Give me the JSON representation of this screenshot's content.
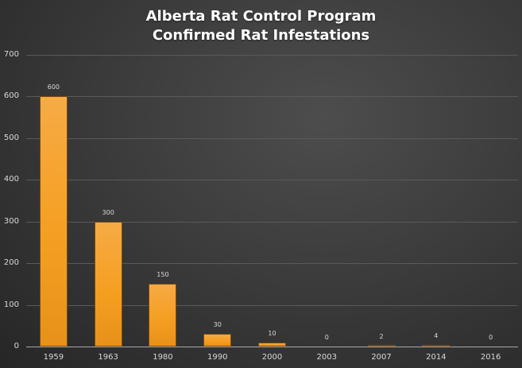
{
  "chart_data": {
    "type": "bar",
    "title": "Alberta Rat Control Program\nConfirmed Rat Infestations",
    "title_lines": [
      "Alberta Rat Control Program",
      "Confirmed Rat Infestations"
    ],
    "categories": [
      "1959",
      "1963",
      "1980",
      "1990",
      "2000",
      "2003",
      "2007",
      "2014",
      "2016"
    ],
    "values": [
      600,
      300,
      150,
      30,
      10,
      0,
      2,
      4,
      0
    ],
    "data_labels": [
      "600",
      "300",
      "150",
      "30",
      "10",
      "0",
      "2",
      "4",
      "0"
    ],
    "xlabel": "",
    "ylabel": "",
    "ylim": [
      0,
      700
    ],
    "yticks": [
      "0",
      "100",
      "200",
      "300",
      "400",
      "500",
      "600",
      "700"
    ],
    "grid": true,
    "legend": null,
    "bar_color": "#f59f22",
    "background": "#3c3c3c"
  }
}
